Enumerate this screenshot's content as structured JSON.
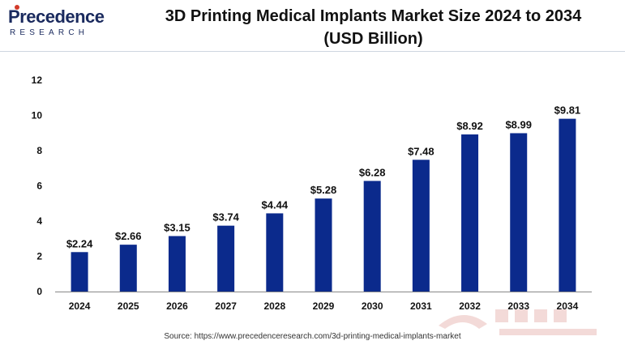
{
  "brand": {
    "name": "Precedence",
    "sub": "RESEARCH"
  },
  "header": {
    "title_line1": "3D Printing Medical Implants Market Size 2024 to 2034",
    "title_line2": "(USD Billion)"
  },
  "footer": {
    "source": "Source: https://www.precedenceresearch.com/3d-printing-medical-implants-market"
  },
  "colors": {
    "bar": "#0b2a8c",
    "axis": "#888888",
    "text": "#111111",
    "brand": "#1a2a5e",
    "brand_accent": "#d23a2a"
  },
  "chart_data": {
    "type": "bar",
    "categories": [
      "2024",
      "2025",
      "2026",
      "2027",
      "2028",
      "2029",
      "2030",
      "2031",
      "2032",
      "2033",
      "2034"
    ],
    "values": [
      2.24,
      2.66,
      3.15,
      3.74,
      4.44,
      5.28,
      6.28,
      7.48,
      8.92,
      8.99,
      9.81
    ],
    "data_labels": [
      "$2.24",
      "$2.66",
      "$3.15",
      "$3.74",
      "$4.44",
      "$5.28",
      "$6.28",
      "$7.48",
      "$8.92",
      "$8.99",
      "$9.81"
    ],
    "title": "3D Printing Medical Implants Market Size 2024 to 2034 (USD Billion)",
    "xlabel": "",
    "ylabel": "",
    "ylim": [
      0,
      12
    ],
    "yticks": [
      0,
      2,
      4,
      6,
      8,
      10,
      12
    ],
    "grid": false,
    "legend": "none"
  }
}
